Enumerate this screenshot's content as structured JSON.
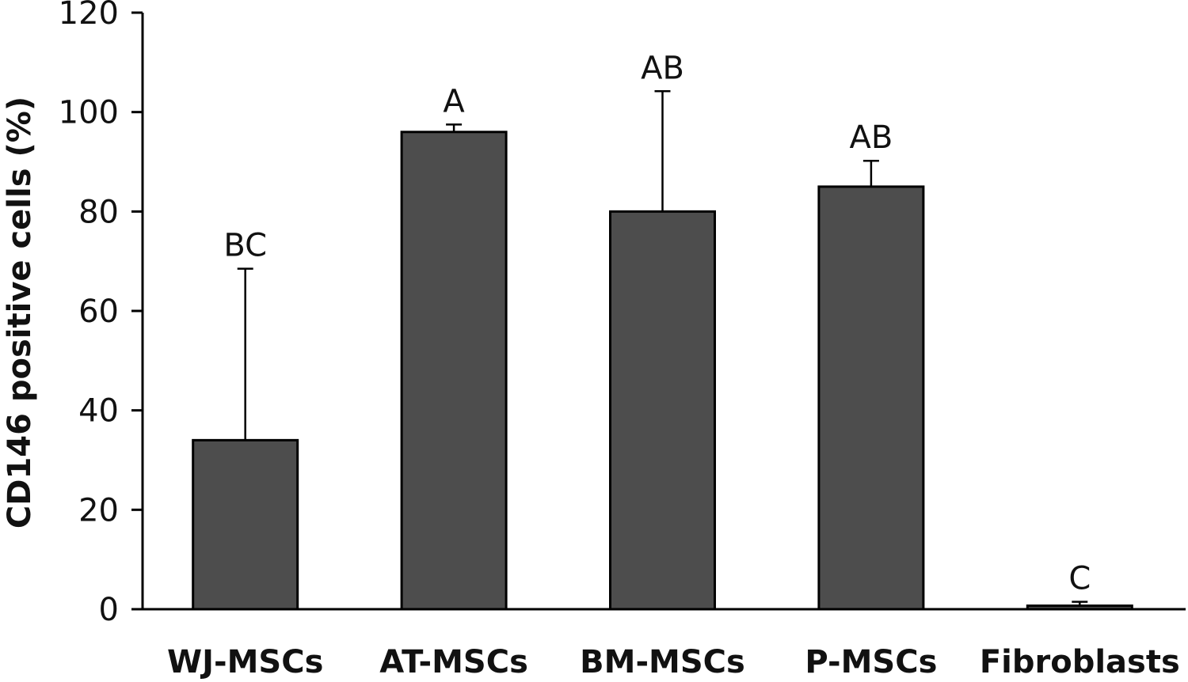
{
  "chart_data": {
    "type": "bar",
    "categories": [
      "WJ-MSCs",
      "AT-MSCs",
      "BM-MSCs",
      "P-MSCs",
      "Fibroblasts"
    ],
    "values": [
      34,
      96,
      80,
      85,
      0.7
    ],
    "error_upper": [
      68.5,
      97.5,
      104.2,
      90.2,
      1.5
    ],
    "significance": [
      "BC",
      "A",
      "AB",
      "AB",
      "C"
    ],
    "ylabel": "CD146 positive cells (%)",
    "xlabel": "",
    "ylim": [
      0,
      120
    ],
    "yticks": [
      "0",
      "20",
      "40",
      "60",
      "80",
      "100",
      "120"
    ],
    "grid": false,
    "colors": {
      "bar": "#4d4d4d",
      "stroke": "#000000"
    }
  }
}
